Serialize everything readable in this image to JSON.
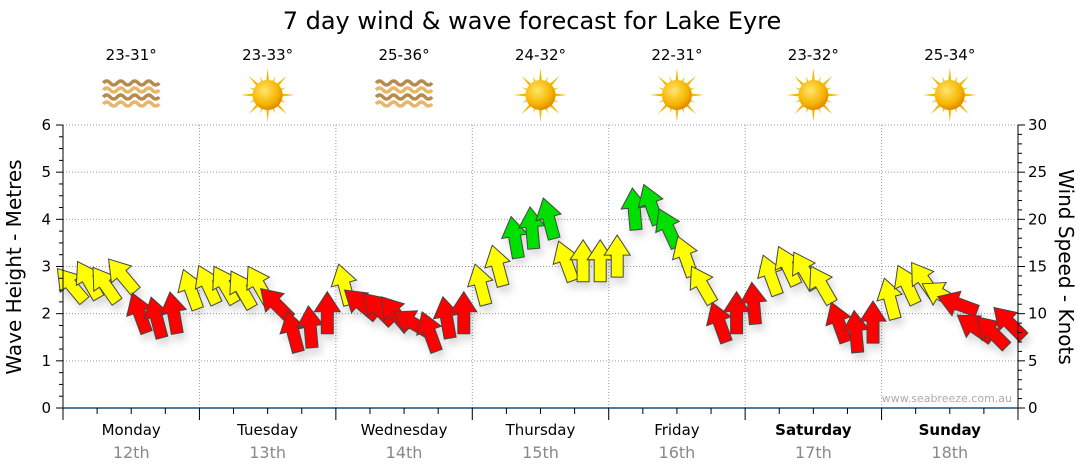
{
  "chart_data": {
    "type": "scatter",
    "title": "7 day wind & wave forecast for Lake Eyre",
    "ylabel": "Wave Height - Metres",
    "y2label": "Wind Speed - Knots",
    "ylim": [
      0,
      6
    ],
    "y2lim": [
      0,
      30
    ],
    "yticks": [
      "0",
      "1",
      "2",
      "3",
      "4",
      "5",
      "6"
    ],
    "y2ticks": [
      "0",
      "5",
      "10",
      "15",
      "20",
      "25",
      "30"
    ],
    "grid": true,
    "watermark": "www.seabreeze.com.au",
    "color_thresholds": {
      "red_below": 11.5,
      "green_from": 17.5
    },
    "colors": {
      "red": "#ff0000",
      "yellow": "#ffff00",
      "green": "#00e000",
      "axis": "#1a4f7a"
    },
    "days": [
      {
        "name": "Monday",
        "date": "12th",
        "bold": false,
        "temp": "23-31°",
        "icon": "waves-icon"
      },
      {
        "name": "Tuesday",
        "date": "13th",
        "bold": false,
        "temp": "23-33°",
        "icon": "sun-icon"
      },
      {
        "name": "Wednesday",
        "date": "14th",
        "bold": false,
        "temp": "25-36°",
        "icon": "waves-icon"
      },
      {
        "name": "Thursday",
        "date": "15th",
        "bold": false,
        "temp": "24-32°",
        "icon": "sun-icon"
      },
      {
        "name": "Friday",
        "date": "16th",
        "bold": false,
        "temp": "22-31°",
        "icon": "sun-icon"
      },
      {
        "name": "Saturday",
        "date": "17th",
        "bold": true,
        "temp": "23-32°",
        "icon": "sun-icon"
      },
      {
        "name": "Sunday",
        "date": "18th",
        "bold": true,
        "temp": "25-34°",
        "icon": "sun-icon"
      }
    ],
    "wind_series": {
      "name": "Wind speed (knots) and direction (degrees arrow points)",
      "step_hours": 3,
      "speed": [
        13,
        13.5,
        13,
        14,
        10,
        9.5,
        10,
        12.5,
        13,
        13,
        12.5,
        13,
        11,
        8,
        8.5,
        10,
        13,
        11,
        10.5,
        10,
        9,
        8,
        9.5,
        10,
        13,
        15,
        18,
        19,
        20,
        15.5,
        15.5,
        15.5,
        16,
        21,
        21.5,
        19,
        16,
        13,
        9,
        10,
        11,
        14,
        15,
        14.5,
        13,
        9,
        8,
        9,
        11.5,
        13,
        13.5,
        12,
        11,
        8.5,
        8,
        9
      ],
      "direction": [
        -40,
        -30,
        -35,
        -40,
        -20,
        -15,
        -10,
        -20,
        -25,
        -30,
        -30,
        -30,
        -45,
        -15,
        -5,
        0,
        -15,
        -50,
        -45,
        -40,
        -60,
        -20,
        -10,
        0,
        -15,
        -15,
        -10,
        -5,
        -15,
        -20,
        0,
        0,
        0,
        -5,
        -20,
        -25,
        -20,
        -30,
        -20,
        0,
        -5,
        -20,
        -25,
        -30,
        -30,
        -20,
        -5,
        0,
        -15,
        -25,
        -35,
        -60,
        -70,
        -55,
        -45,
        -45
      ]
    }
  }
}
